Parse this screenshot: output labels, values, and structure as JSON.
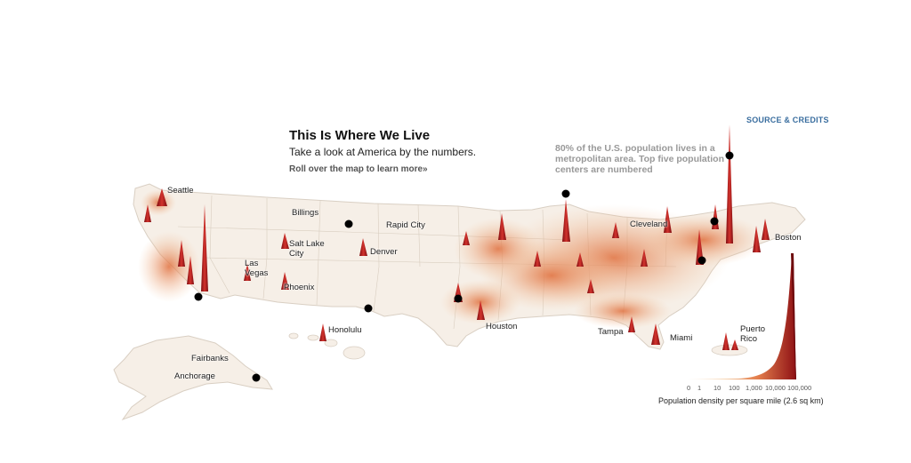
{
  "header": {
    "source_link": "SOURCE & CREDITS",
    "title": "This Is Where We Live",
    "subtitle": "Take a look at America by the numbers.",
    "cta": "Roll over the map to learn more»"
  },
  "metro_note": "80% of the U.S. population lives in a metropolitan area. Top five population centers are numbered",
  "cities": {
    "seattle": "Seattle",
    "billings": "Billings",
    "rapid_city": "Rapid City",
    "salt_lake_city": "Salt Lake City",
    "denver": "Denver",
    "las_vegas": "Las Vegas",
    "phoenix": "Phoenix",
    "honolulu": "Honolulu",
    "houston": "Houston",
    "cleveland": "Cleveland",
    "boston": "Boston",
    "tampa": "Tampa",
    "miami": "Miami",
    "puerto_rico": "Puerto Rico",
    "fairbanks": "Fairbanks",
    "anchorage": "Anchorage"
  },
  "legend": {
    "ticks": [
      "0",
      "1",
      "10",
      "100",
      "1,000",
      "10,000",
      "100,000"
    ],
    "caption": "Population density per square mile (2.6 sq km)",
    "color_low": "#fbeedd",
    "color_high": "#8e1014"
  },
  "colors": {
    "land": "#f6efe7",
    "land_stroke": "#d9cfc3",
    "density": "#e8a072",
    "peak": "#b81e22",
    "marker": "#000000"
  }
}
